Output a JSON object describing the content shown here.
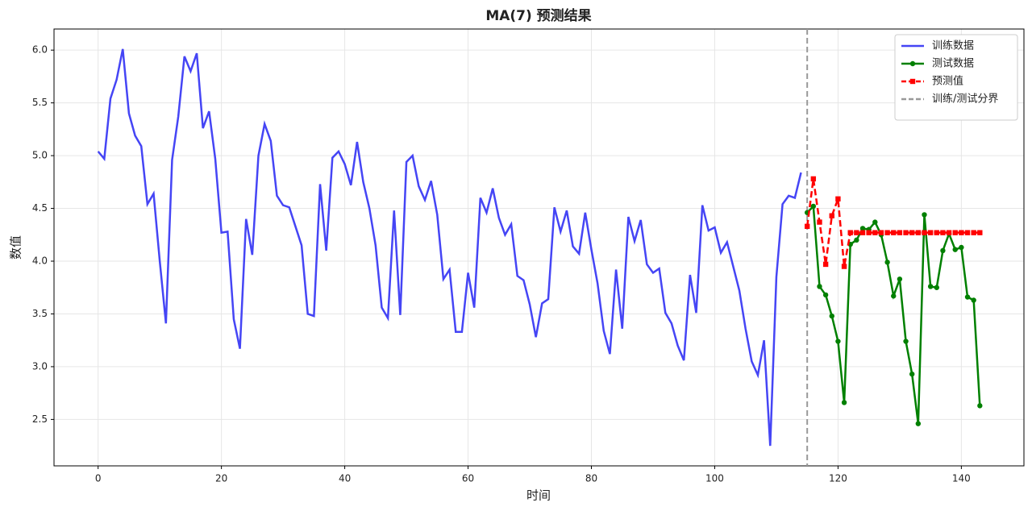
{
  "chart_data": {
    "type": "line",
    "title": "MA(7) 预测结果",
    "x_label": "时间",
    "y_label": "数值",
    "xlim": [
      -7.15,
      150.15
    ],
    "ylim": [
      2.06,
      6.2
    ],
    "xticks": [
      0,
      20,
      40,
      60,
      80,
      100,
      120,
      140
    ],
    "yticks": [
      2.5,
      {
        "value": 3,
        "label": "3.0"
      },
      3.5,
      {
        "value": 4,
        "label": "4.0"
      },
      4.5,
      {
        "value": 5,
        "label": "5.0"
      },
      5.5,
      {
        "value": 6,
        "label": "6.0"
      }
    ],
    "grid": true,
    "legend": "upper right",
    "series": [
      {
        "name": "训练数据",
        "color": "#4545f5",
        "linestyle": "solid",
        "marker": "none",
        "x": [
          0,
          1,
          2,
          3,
          4,
          5,
          6,
          7,
          8,
          9,
          10,
          11,
          12,
          13,
          14,
          15,
          16,
          17,
          18,
          19,
          20,
          21,
          22,
          23,
          24,
          25,
          26,
          27,
          28,
          29,
          30,
          31,
          32,
          33,
          34,
          35,
          36,
          37,
          38,
          39,
          40,
          41,
          42,
          43,
          44,
          45,
          46,
          47,
          48,
          49,
          50,
          51,
          52,
          53,
          54,
          55,
          56,
          57,
          58,
          59,
          60,
          61,
          62,
          63,
          64,
          65,
          66,
          67,
          68,
          69,
          70,
          71,
          72,
          73,
          74,
          75,
          76,
          77,
          78,
          79,
          80,
          81,
          82,
          83,
          84,
          85,
          86,
          87,
          88,
          89,
          90,
          91,
          92,
          93,
          94,
          95,
          96,
          97,
          98,
          99,
          100,
          101,
          102,
          103,
          104,
          105,
          106,
          107,
          108,
          109,
          110,
          111,
          112,
          113,
          114
        ],
        "values": [
          5.04,
          4.97,
          5.54,
          5.72,
          6.01,
          5.4,
          5.19,
          5.09,
          4.54,
          4.64,
          4.0,
          3.41,
          4.96,
          5.37,
          5.94,
          5.8,
          5.97,
          5.26,
          5.42,
          4.97,
          4.27,
          4.28,
          3.45,
          3.17,
          4.4,
          4.06,
          5.0,
          5.3,
          5.14,
          4.62,
          4.53,
          4.51,
          4.33,
          4.15,
          3.5,
          3.48,
          4.73,
          4.1,
          4.98,
          5.04,
          4.92,
          4.72,
          5.13,
          4.75,
          4.5,
          4.15,
          3.56,
          3.46,
          4.48,
          3.49,
          4.94,
          5.0,
          4.71,
          4.58,
          4.76,
          4.44,
          3.83,
          3.92,
          3.33,
          3.33,
          3.89,
          3.56,
          4.6,
          4.46,
          4.69,
          4.41,
          4.25,
          4.35,
          3.86,
          3.82,
          3.59,
          3.28,
          3.6,
          3.64,
          4.51,
          4.28,
          4.48,
          4.14,
          4.07,
          4.46,
          4.11,
          3.79,
          3.34,
          3.12,
          3.92,
          3.36,
          4.42,
          4.19,
          4.39,
          3.97,
          3.89,
          3.93,
          3.51,
          3.41,
          3.2,
          3.06,
          3.87,
          3.51,
          4.53,
          4.29,
          4.32,
          4.08,
          4.18,
          3.95,
          3.72,
          3.36,
          3.05,
          2.92,
          3.25,
          2.25,
          3.85,
          4.54,
          4.62,
          4.6,
          4.84
        ]
      },
      {
        "name": "测试数据",
        "color": "#008000",
        "linestyle": "solid",
        "marker": "circle",
        "x": [
          115,
          116,
          117,
          118,
          119,
          120,
          121,
          122,
          123,
          124,
          125,
          126,
          127,
          128,
          129,
          130,
          131,
          132,
          133,
          134,
          135,
          136,
          137,
          138,
          139,
          140,
          141,
          142,
          143
        ],
        "values": [
          4.46,
          4.52,
          3.76,
          3.68,
          3.48,
          3.24,
          2.66,
          4.16,
          4.2,
          4.31,
          4.3,
          4.37,
          4.25,
          3.99,
          3.67,
          3.83,
          3.24,
          2.93,
          2.46,
          4.44,
          3.76,
          3.75,
          4.1,
          4.26,
          4.11,
          4.13,
          3.66,
          3.63,
          2.63
        ]
      },
      {
        "name": "预测值",
        "color": "#ff0000",
        "linestyle": "dashed",
        "marker": "square",
        "x": [
          115,
          116,
          117,
          118,
          119,
          120,
          121,
          122,
          123,
          124,
          125,
          126,
          127,
          128,
          129,
          130,
          131,
          132,
          133,
          134,
          135,
          136,
          137,
          138,
          139,
          140,
          141,
          142,
          143
        ],
        "values": [
          4.33,
          4.78,
          4.37,
          3.97,
          4.43,
          4.59,
          3.95,
          4.27,
          4.27,
          4.27,
          4.27,
          4.27,
          4.27,
          4.27,
          4.27,
          4.27,
          4.27,
          4.27,
          4.27,
          4.27,
          4.27,
          4.27,
          4.27,
          4.27,
          4.27,
          4.27,
          4.27,
          4.27,
          4.27
        ]
      }
    ],
    "vline": {
      "name": "训练/测试分界",
      "x": 115,
      "color": "#999999",
      "linestyle": "dashed"
    }
  }
}
